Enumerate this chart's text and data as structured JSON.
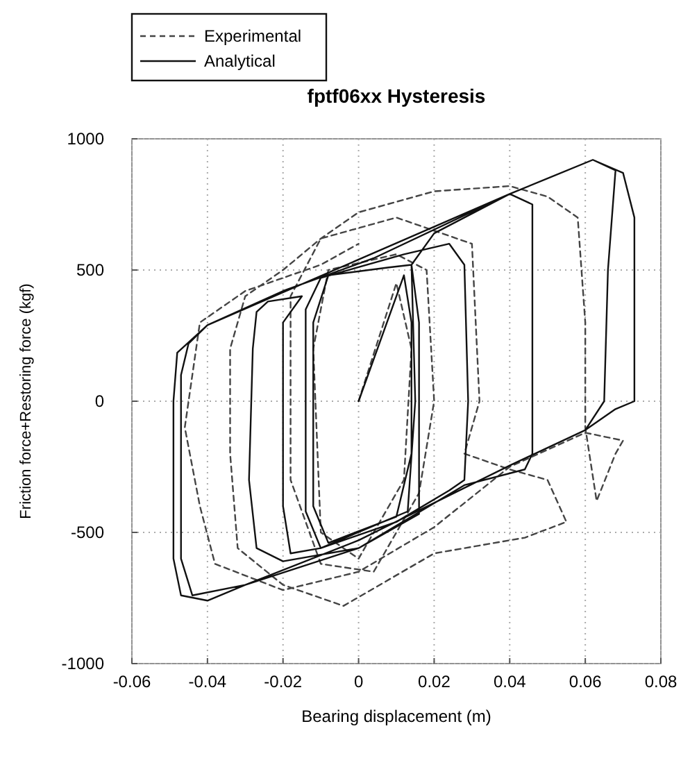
{
  "chart_data": {
    "type": "line",
    "title": "fptf06xx Hysteresis",
    "xlabel": "Bearing displacement (m)",
    "ylabel": "Friction force+Restoring force (kgf)",
    "xlim": [
      -0.06,
      0.08
    ],
    "xticks": [
      {
        "value": -0.06,
        "label": "-0.06"
      },
      {
        "value": -0.04,
        "label": "-0.04"
      },
      {
        "value": -0.02,
        "label": "-0.02"
      },
      0,
      0.02,
      0.04,
      0.06,
      0.08
    ],
    "ylim": [
      -1000,
      1000
    ],
    "yticks": [
      -1000,
      -500,
      0,
      500,
      1000
    ],
    "grid": true,
    "legend": "top left",
    "marker": "none",
    "series": [
      {
        "name": "Experimental",
        "color": "#444444",
        "line_style": "dashed",
        "x": [
          0,
          0.01,
          0.014,
          0.012,
          0,
          -0.01,
          -0.012,
          -0.008,
          0.01,
          0.018,
          0.02,
          0.016,
          0.004,
          -0.01,
          -0.018,
          -0.018,
          -0.01,
          0.01,
          0.03,
          0.032,
          0.028,
          0.04,
          0.05,
          0.055,
          0.044,
          0.02,
          -0.004,
          -0.02,
          -0.032,
          -0.034,
          -0.034,
          -0.03,
          -0.02,
          -0.01,
          0,
          0.02,
          0.04,
          0.05,
          0.058,
          0.06,
          0.06,
          0.063,
          0.068,
          0.07,
          0.06,
          0.04,
          0.02,
          0,
          -0.02,
          -0.038,
          -0.042,
          -0.046,
          -0.042,
          -0.03,
          -0.01,
          0
        ],
        "values": [
          0,
          450,
          200,
          -300,
          -600,
          -500,
          200,
          500,
          560,
          500,
          0,
          -350,
          -650,
          -620,
          -300,
          400,
          620,
          700,
          600,
          0,
          -200,
          -260,
          -300,
          -460,
          -520,
          -580,
          -780,
          -700,
          -560,
          -200,
          200,
          400,
          500,
          620,
          720,
          800,
          820,
          780,
          700,
          300,
          -100,
          -380,
          -200,
          -150,
          -120,
          -250,
          -480,
          -650,
          -720,
          -620,
          -400,
          -100,
          300,
          420,
          520,
          600
        ]
      },
      {
        "name": "Analytical",
        "color": "#111111",
        "line_style": "solid",
        "x": [
          0,
          0.012,
          0.014,
          0.014,
          0.01,
          -0.008,
          -0.012,
          -0.012,
          -0.008,
          0.008,
          0.014,
          0.015,
          0.013,
          -0.01,
          -0.014,
          -0.014,
          -0.01,
          0.012,
          0.024,
          0.028,
          0.029,
          0.028,
          0.024,
          0.01,
          -0.01,
          -0.018,
          -0.02,
          -0.02,
          -0.015,
          -0.024,
          -0.027,
          -0.028,
          -0.029,
          -0.027,
          -0.02,
          0,
          0.016,
          0.016,
          0.014,
          0.02,
          0.04,
          0.046,
          0.046,
          0.044,
          0.028,
          0,
          -0.03,
          -0.044,
          -0.047,
          -0.047,
          -0.045,
          -0.04,
          -0.02,
          0.004,
          0.04,
          0.062,
          0.068,
          0.066,
          0.065,
          0.06,
          0.04,
          0,
          -0.03,
          -0.04,
          -0.047,
          -0.049,
          -0.049,
          -0.048,
          -0.04,
          0,
          0.04,
          0.062,
          0.07,
          0.073,
          0.073,
          0.068,
          0.06
        ],
        "values": [
          0,
          480,
          300,
          -200,
          -440,
          -540,
          -400,
          300,
          480,
          510,
          520,
          0,
          -420,
          -560,
          -420,
          350,
          470,
          560,
          600,
          520,
          0,
          -300,
          -340,
          -460,
          -560,
          -580,
          -400,
          300,
          400,
          380,
          340,
          200,
          -300,
          -560,
          -610,
          -560,
          -430,
          300,
          520,
          640,
          790,
          750,
          -200,
          -260,
          -320,
          -560,
          -700,
          -740,
          -600,
          100,
          220,
          290,
          420,
          545,
          790,
          920,
          880,
          500,
          0,
          -110,
          -245,
          -530,
          -700,
          -760,
          -740,
          -600,
          0,
          185,
          290,
          540,
          790,
          920,
          870,
          700,
          0,
          -30,
          -110
        ]
      }
    ]
  }
}
